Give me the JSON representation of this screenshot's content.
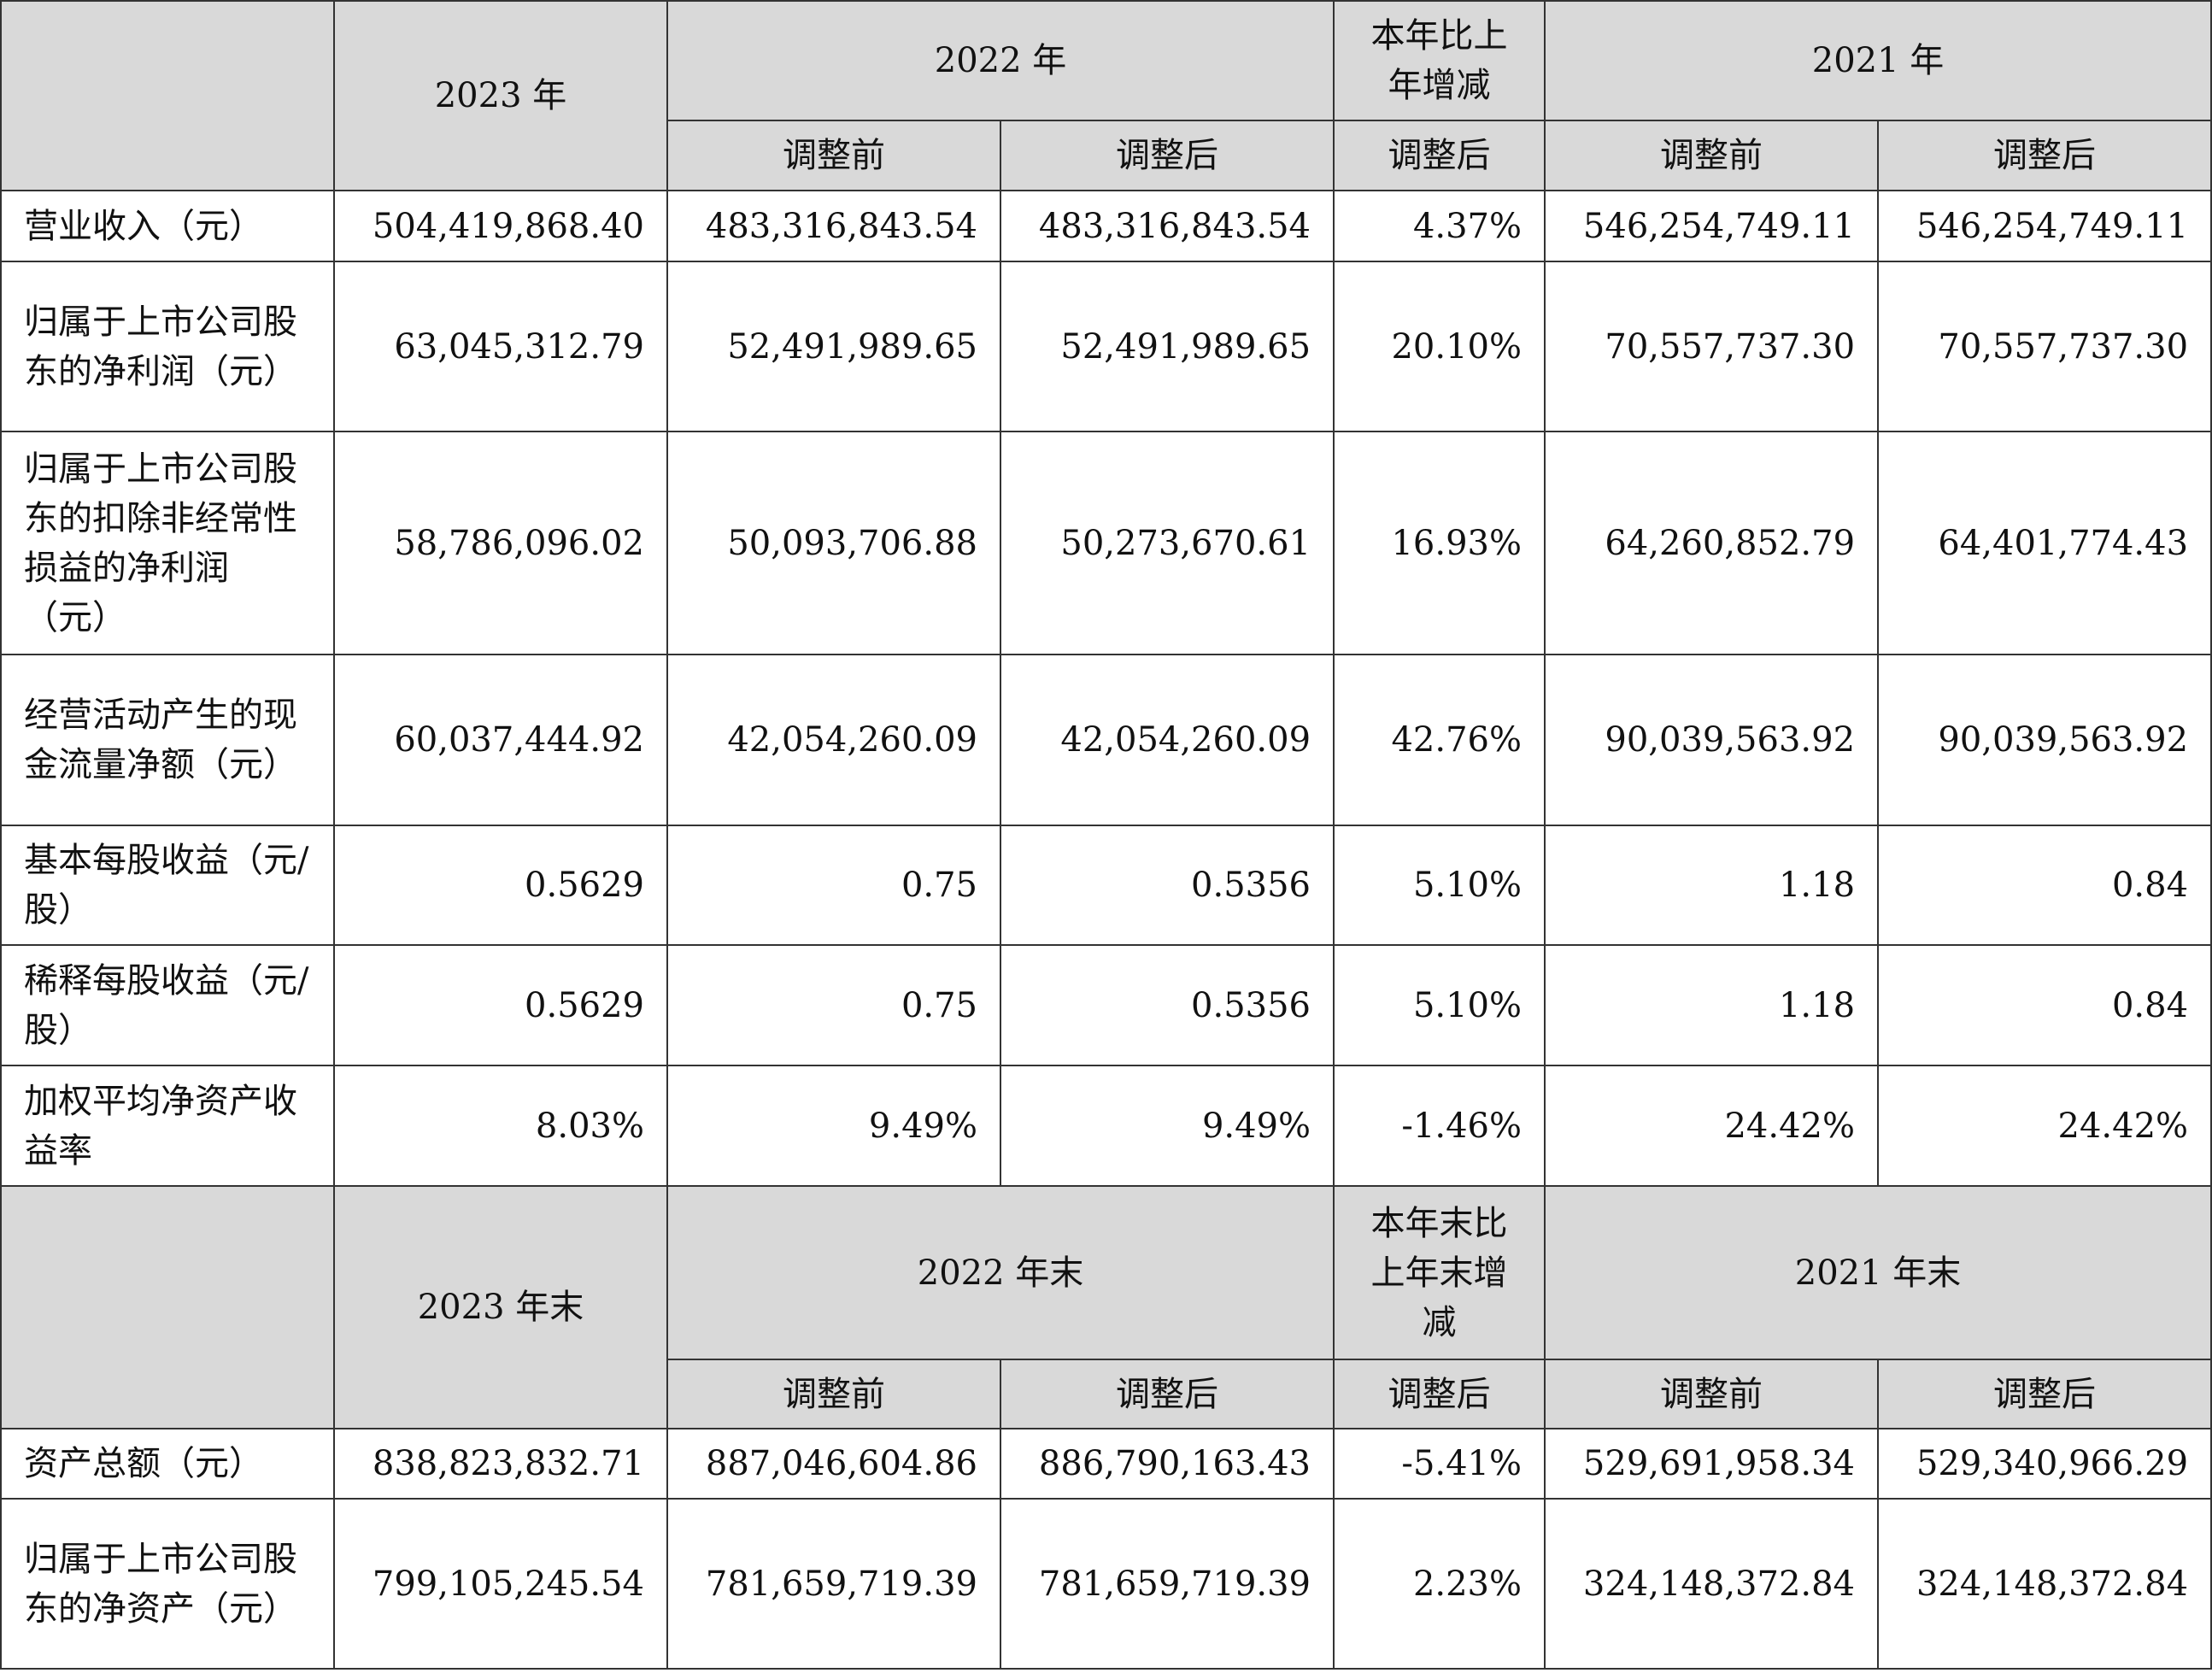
{
  "income_header": {
    "y2023": "2023 年",
    "y2022": "2022 年",
    "change": "本年比上年增减",
    "y2021": "2021 年",
    "before": "调整前",
    "after": "调整后"
  },
  "income_rows": [
    {
      "label": "营业收入（元）",
      "v2023": "504,419,868.40",
      "v2022_before": "483,316,843.54",
      "v2022_after": "483,316,843.54",
      "change": "4.37%",
      "v2021_before": "546,254,749.11",
      "v2021_after": "546,254,749.11"
    },
    {
      "label": "归属于上市公司股东的净利润（元）",
      "v2023": "63,045,312.79",
      "v2022_before": "52,491,989.65",
      "v2022_after": "52,491,989.65",
      "change": "20.10%",
      "v2021_before": "70,557,737.30",
      "v2021_after": "70,557,737.30"
    },
    {
      "label": "归属于上市公司股东的扣除非经常性损益的净利润（元）",
      "v2023": "58,786,096.02",
      "v2022_before": "50,093,706.88",
      "v2022_after": "50,273,670.61",
      "change": "16.93%",
      "v2021_before": "64,260,852.79",
      "v2021_after": "64,401,774.43"
    },
    {
      "label": "经营活动产生的现金流量净额（元）",
      "v2023": "60,037,444.92",
      "v2022_before": "42,054,260.09",
      "v2022_after": "42,054,260.09",
      "change": "42.76%",
      "v2021_before": "90,039,563.92",
      "v2021_after": "90,039,563.92"
    },
    {
      "label": "基本每股收益（元/股）",
      "v2023": "0.5629",
      "v2022_before": "0.75",
      "v2022_after": "0.5356",
      "change": "5.10%",
      "v2021_before": "1.18",
      "v2021_after": "0.84"
    },
    {
      "label": "稀释每股收益（元/股）",
      "v2023": "0.5629",
      "v2022_before": "0.75",
      "v2022_after": "0.5356",
      "change": "5.10%",
      "v2021_before": "1.18",
      "v2021_after": "0.84"
    },
    {
      "label": "加权平均净资产收益率",
      "v2023": "8.03%",
      "v2022_before": "9.49%",
      "v2022_after": "9.49%",
      "change": "-1.46%",
      "v2021_before": "24.42%",
      "v2021_after": "24.42%"
    }
  ],
  "balance_header": {
    "y2023": "2023 年末",
    "y2022": "2022 年末",
    "change": "本年末比上年末增减",
    "y2021": "2021 年末",
    "before": "调整前",
    "after": "调整后"
  },
  "balance_rows": [
    {
      "label": "资产总额（元）",
      "v2023": "838,823,832.71",
      "v2022_before": "887,046,604.86",
      "v2022_after": "886,790,163.43",
      "change": "-5.41%",
      "v2021_before": "529,691,958.34",
      "v2021_after": "529,340,966.29"
    },
    {
      "label": "归属于上市公司股东的净资产（元）",
      "v2023": "799,105,245.54",
      "v2022_before": "781,659,719.39",
      "v2022_after": "781,659,719.39",
      "change": "2.23%",
      "v2021_before": "324,148,372.84",
      "v2021_after": "324,148,372.84"
    }
  ]
}
